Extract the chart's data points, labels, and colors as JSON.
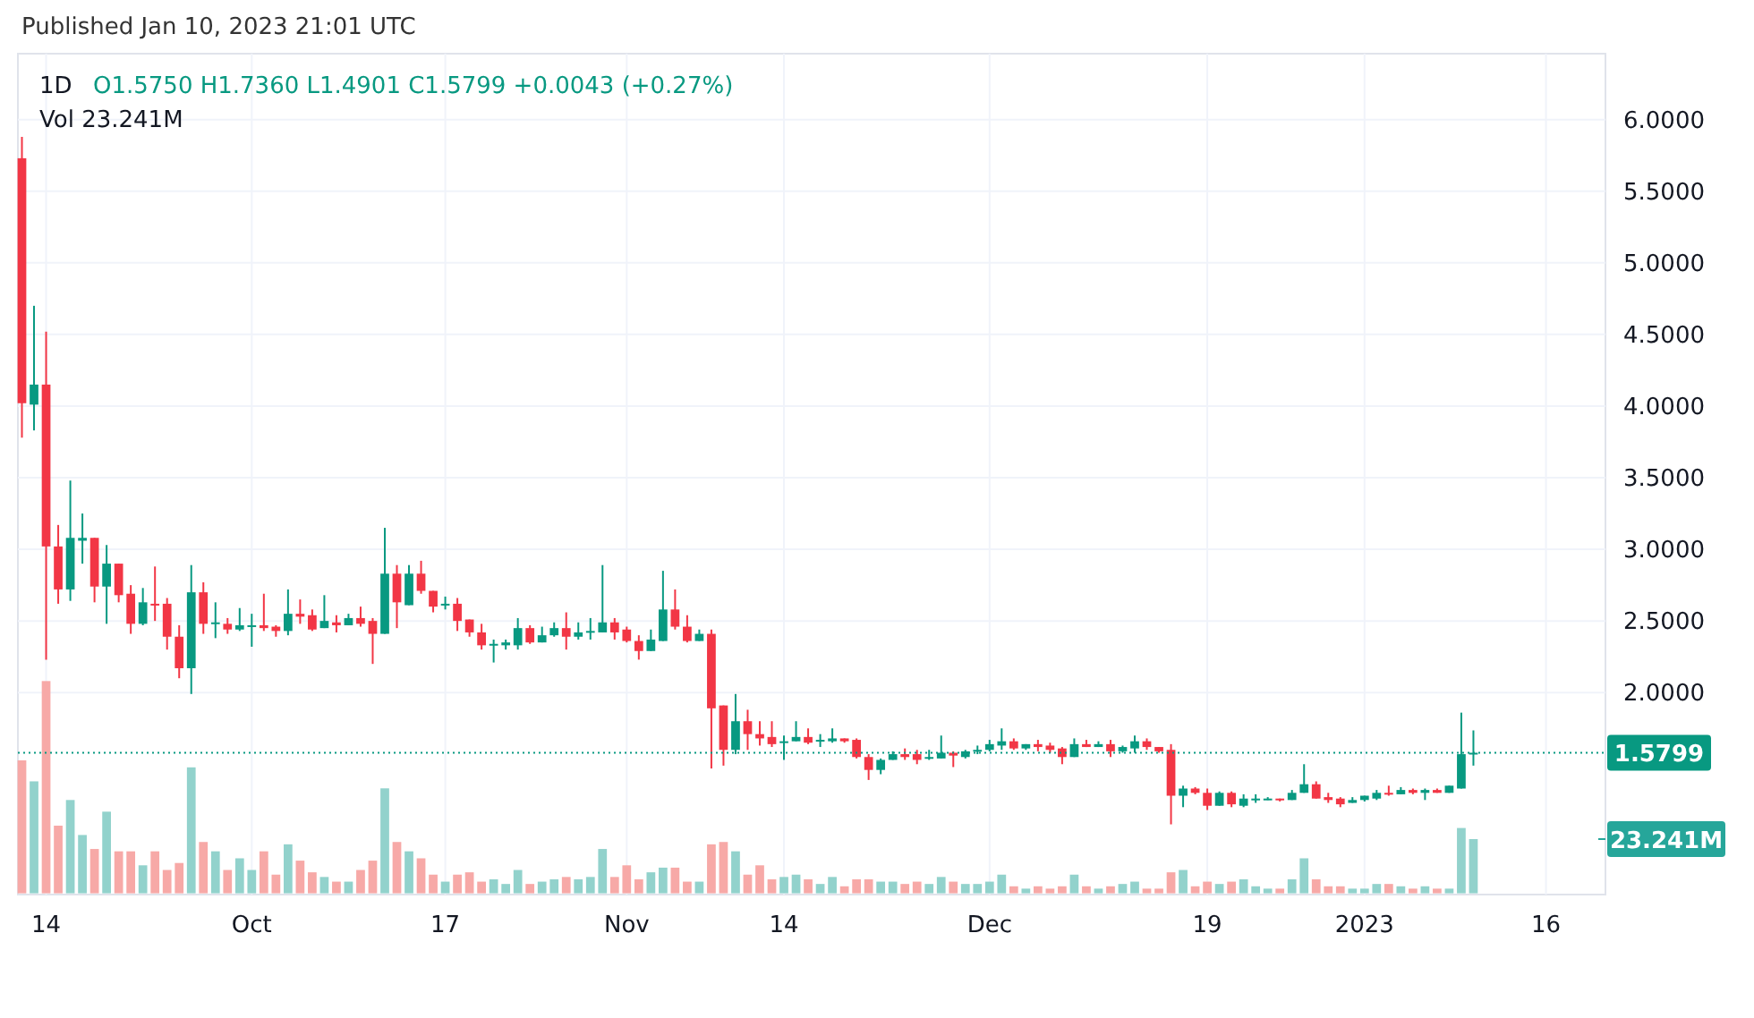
{
  "chart_data": {
    "type": "candlestick",
    "annotations": [
      "Published Jan 10, 2023 21:01 UTC",
      "1D",
      "O1.5750  H1.7360  L1.4901  C1.5799  +0.0043 (+0.27%)",
      "Vol  23.241M"
    ],
    "x": [
      "2022-09-12",
      "2022-09-13",
      "2022-09-14",
      "2022-09-15",
      "2022-09-16",
      "2022-09-17",
      "2022-09-18",
      "2022-09-19",
      "2022-09-20",
      "2022-09-21",
      "2022-09-22",
      "2022-09-23",
      "2022-09-24",
      "2022-09-25",
      "2022-09-26",
      "2022-09-27",
      "2022-09-28",
      "2022-09-29",
      "2022-09-30",
      "2022-10-01",
      "2022-10-02",
      "2022-10-03",
      "2022-10-04",
      "2022-10-05",
      "2022-10-06",
      "2022-10-07",
      "2022-10-08",
      "2022-10-09",
      "2022-10-10",
      "2022-10-11",
      "2022-10-12",
      "2022-10-13",
      "2022-10-14",
      "2022-10-15",
      "2022-10-16",
      "2022-10-17",
      "2022-10-18",
      "2022-10-19",
      "2022-10-20",
      "2022-10-21",
      "2022-10-22",
      "2022-10-23",
      "2022-10-24",
      "2022-10-25",
      "2022-10-26",
      "2022-10-27",
      "2022-10-28",
      "2022-10-29",
      "2022-10-30",
      "2022-10-31",
      "2022-11-01",
      "2022-11-02",
      "2022-11-03",
      "2022-11-04",
      "2022-11-05",
      "2022-11-06",
      "2022-11-07",
      "2022-11-08",
      "2022-11-09",
      "2022-11-10",
      "2022-11-11",
      "2022-11-12",
      "2022-11-13",
      "2022-11-14",
      "2022-11-15",
      "2022-11-16",
      "2022-11-17",
      "2022-11-18",
      "2022-11-19",
      "2022-11-20",
      "2022-11-21",
      "2022-11-22",
      "2022-11-23",
      "2022-11-24",
      "2022-11-25",
      "2022-11-26",
      "2022-11-27",
      "2022-11-28",
      "2022-11-29",
      "2022-11-30",
      "2022-12-01",
      "2022-12-02",
      "2022-12-03",
      "2022-12-04",
      "2022-12-05",
      "2022-12-06",
      "2022-12-07",
      "2022-12-08",
      "2022-12-09",
      "2022-12-10",
      "2022-12-11",
      "2022-12-12",
      "2022-12-13",
      "2022-12-14",
      "2022-12-15",
      "2022-12-16",
      "2022-12-17",
      "2022-12-18",
      "2022-12-19",
      "2022-12-20",
      "2022-12-21",
      "2022-12-22",
      "2022-12-23",
      "2022-12-24",
      "2022-12-25",
      "2022-12-26",
      "2022-12-27",
      "2022-12-28",
      "2022-12-29",
      "2022-12-30",
      "2022-12-31",
      "2023-01-01",
      "2023-01-02",
      "2023-01-03",
      "2023-01-04",
      "2023-01-05",
      "2023-01-06",
      "2023-01-07",
      "2023-01-08",
      "2023-01-09",
      "2023-01-10"
    ],
    "ohlc": [
      [
        5.73,
        5.88,
        3.78,
        4.02
      ],
      [
        4.01,
        4.7,
        3.83,
        4.15
      ],
      [
        4.15,
        4.52,
        2.23,
        3.02
      ],
      [
        3.02,
        3.17,
        2.62,
        2.72
      ],
      [
        2.72,
        3.48,
        2.64,
        3.08
      ],
      [
        3.06,
        3.25,
        2.9,
        3.08
      ],
      [
        3.08,
        3.08,
        2.63,
        2.74
      ],
      [
        2.74,
        3.03,
        2.48,
        2.9
      ],
      [
        2.9,
        2.9,
        2.63,
        2.68
      ],
      [
        2.69,
        2.75,
        2.41,
        2.48
      ],
      [
        2.48,
        2.73,
        2.47,
        2.63
      ],
      [
        2.62,
        2.88,
        2.5,
        2.61
      ],
      [
        2.62,
        2.66,
        2.3,
        2.39
      ],
      [
        2.39,
        2.47,
        2.1,
        2.17
      ],
      [
        2.17,
        2.89,
        1.99,
        2.7
      ],
      [
        2.7,
        2.77,
        2.41,
        2.48
      ],
      [
        2.48,
        2.63,
        2.38,
        2.49
      ],
      [
        2.48,
        2.52,
        2.41,
        2.44
      ],
      [
        2.44,
        2.59,
        2.43,
        2.47
      ],
      [
        2.46,
        2.55,
        2.32,
        2.47
      ],
      [
        2.47,
        2.69,
        2.43,
        2.45
      ],
      [
        2.46,
        2.47,
        2.39,
        2.43
      ],
      [
        2.43,
        2.72,
        2.4,
        2.55
      ],
      [
        2.55,
        2.65,
        2.48,
        2.53
      ],
      [
        2.54,
        2.58,
        2.43,
        2.44
      ],
      [
        2.45,
        2.68,
        2.45,
        2.5
      ],
      [
        2.49,
        2.54,
        2.42,
        2.47
      ],
      [
        2.47,
        2.55,
        2.47,
        2.52
      ],
      [
        2.52,
        2.6,
        2.46,
        2.48
      ],
      [
        2.5,
        2.52,
        2.2,
        2.41
      ],
      [
        2.41,
        3.15,
        2.41,
        2.83
      ],
      [
        2.83,
        2.89,
        2.45,
        2.63
      ],
      [
        2.61,
        2.89,
        2.61,
        2.83
      ],
      [
        2.83,
        2.92,
        2.69,
        2.71
      ],
      [
        2.71,
        2.71,
        2.56,
        2.6
      ],
      [
        2.61,
        2.67,
        2.58,
        2.62
      ],
      [
        2.62,
        2.66,
        2.43,
        2.5
      ],
      [
        2.51,
        2.51,
        2.39,
        2.42
      ],
      [
        2.42,
        2.48,
        2.3,
        2.33
      ],
      [
        2.33,
        2.37,
        2.21,
        2.34
      ],
      [
        2.33,
        2.37,
        2.3,
        2.35
      ],
      [
        2.33,
        2.52,
        2.3,
        2.45
      ],
      [
        2.45,
        2.47,
        2.34,
        2.35
      ],
      [
        2.35,
        2.46,
        2.35,
        2.4
      ],
      [
        2.4,
        2.49,
        2.39,
        2.45
      ],
      [
        2.45,
        2.56,
        2.3,
        2.39
      ],
      [
        2.39,
        2.49,
        2.37,
        2.42
      ],
      [
        2.42,
        2.52,
        2.37,
        2.43
      ],
      [
        2.42,
        2.89,
        2.42,
        2.49
      ],
      [
        2.49,
        2.52,
        2.37,
        2.42
      ],
      [
        2.44,
        2.46,
        2.35,
        2.36
      ],
      [
        2.36,
        2.4,
        2.23,
        2.29
      ],
      [
        2.29,
        2.44,
        2.29,
        2.37
      ],
      [
        2.36,
        2.85,
        2.36,
        2.58
      ],
      [
        2.58,
        2.72,
        2.44,
        2.46
      ],
      [
        2.46,
        2.54,
        2.35,
        2.36
      ],
      [
        2.36,
        2.44,
        2.36,
        2.41
      ],
      [
        2.41,
        2.44,
        1.47,
        1.89
      ],
      [
        1.91,
        1.91,
        1.49,
        1.6
      ],
      [
        1.6,
        1.99,
        1.57,
        1.8
      ],
      [
        1.8,
        1.88,
        1.6,
        1.71
      ],
      [
        1.71,
        1.8,
        1.63,
        1.68
      ],
      [
        1.69,
        1.8,
        1.62,
        1.64
      ],
      [
        1.65,
        1.7,
        1.53,
        1.66
      ],
      [
        1.66,
        1.8,
        1.66,
        1.69
      ],
      [
        1.69,
        1.75,
        1.64,
        1.65
      ],
      [
        1.66,
        1.71,
        1.62,
        1.67
      ],
      [
        1.66,
        1.75,
        1.65,
        1.68
      ],
      [
        1.68,
        1.68,
        1.65,
        1.66
      ],
      [
        1.67,
        1.68,
        1.54,
        1.55
      ],
      [
        1.55,
        1.57,
        1.39,
        1.46
      ],
      [
        1.46,
        1.54,
        1.43,
        1.53
      ],
      [
        1.53,
        1.59,
        1.53,
        1.57
      ],
      [
        1.57,
        1.61,
        1.53,
        1.55
      ],
      [
        1.57,
        1.6,
        1.5,
        1.53
      ],
      [
        1.54,
        1.6,
        1.53,
        1.55
      ],
      [
        1.54,
        1.7,
        1.54,
        1.58
      ],
      [
        1.58,
        1.59,
        1.48,
        1.56
      ],
      [
        1.55,
        1.6,
        1.54,
        1.59
      ],
      [
        1.59,
        1.63,
        1.57,
        1.6
      ],
      [
        1.6,
        1.67,
        1.59,
        1.64
      ],
      [
        1.63,
        1.75,
        1.6,
        1.66
      ],
      [
        1.66,
        1.68,
        1.6,
        1.61
      ],
      [
        1.61,
        1.64,
        1.6,
        1.64
      ],
      [
        1.64,
        1.67,
        1.59,
        1.62
      ],
      [
        1.63,
        1.65,
        1.58,
        1.6
      ],
      [
        1.61,
        1.62,
        1.5,
        1.55
      ],
      [
        1.55,
        1.68,
        1.55,
        1.64
      ],
      [
        1.64,
        1.67,
        1.62,
        1.62
      ],
      [
        1.62,
        1.66,
        1.62,
        1.64
      ],
      [
        1.64,
        1.67,
        1.55,
        1.59
      ],
      [
        1.59,
        1.63,
        1.58,
        1.62
      ],
      [
        1.61,
        1.7,
        1.58,
        1.66
      ],
      [
        1.66,
        1.68,
        1.6,
        1.62
      ],
      [
        1.62,
        1.62,
        1.58,
        1.59
      ],
      [
        1.6,
        1.64,
        1.08,
        1.28
      ],
      [
        1.28,
        1.35,
        1.2,
        1.33
      ],
      [
        1.33,
        1.34,
        1.29,
        1.3
      ],
      [
        1.3,
        1.33,
        1.18,
        1.21
      ],
      [
        1.21,
        1.31,
        1.21,
        1.3
      ],
      [
        1.3,
        1.31,
        1.2,
        1.22
      ],
      [
        1.21,
        1.29,
        1.2,
        1.26
      ],
      [
        1.25,
        1.29,
        1.23,
        1.26
      ],
      [
        1.25,
        1.27,
        1.25,
        1.26
      ],
      [
        1.26,
        1.26,
        1.24,
        1.25
      ],
      [
        1.25,
        1.32,
        1.25,
        1.3
      ],
      [
        1.3,
        1.5,
        1.3,
        1.36
      ],
      [
        1.36,
        1.38,
        1.26,
        1.26
      ],
      [
        1.27,
        1.3,
        1.23,
        1.25
      ],
      [
        1.26,
        1.27,
        1.2,
        1.22
      ],
      [
        1.23,
        1.27,
        1.23,
        1.25
      ],
      [
        1.25,
        1.28,
        1.24,
        1.28
      ],
      [
        1.26,
        1.32,
        1.25,
        1.3
      ],
      [
        1.3,
        1.35,
        1.28,
        1.29
      ],
      [
        1.29,
        1.34,
        1.29,
        1.32
      ],
      [
        1.32,
        1.33,
        1.29,
        1.3
      ],
      [
        1.3,
        1.33,
        1.25,
        1.32
      ],
      [
        1.32,
        1.33,
        1.3,
        1.3
      ],
      [
        1.3,
        1.35,
        1.3,
        1.35
      ],
      [
        1.33,
        1.86,
        1.33,
        1.57
      ],
      [
        1.575,
        1.736,
        1.4901,
        1.5799
      ]
    ],
    "colors": [
      "#f23645",
      "#089981",
      "#f23645",
      "#f23645",
      "#089981",
      "#089981",
      "#f23645",
      "#089981",
      "#f23645",
      "#f23645",
      "#089981",
      "#f23645",
      "#f23645",
      "#f23645",
      "#089981",
      "#f23645",
      "#089981",
      "#f23645",
      "#089981",
      "#089981",
      "#f23645",
      "#f23645",
      "#089981",
      "#f23645",
      "#f23645",
      "#089981",
      "#f23645",
      "#089981",
      "#f23645",
      "#f23645",
      "#089981",
      "#f23645",
      "#089981",
      "#f23645",
      "#f23645",
      "#089981",
      "#f23645",
      "#f23645",
      "#f23645",
      "#089981",
      "#089981",
      "#089981",
      "#f23645",
      "#089981",
      "#089981",
      "#f23645",
      "#089981",
      "#089981",
      "#089981",
      "#f23645",
      "#f23645",
      "#f23645",
      "#089981",
      "#089981",
      "#f23645",
      "#f23645",
      "#089981",
      "#f23645",
      "#f23645",
      "#089981",
      "#f23645",
      "#f23645",
      "#f23645",
      "#089981",
      "#089981",
      "#f23645",
      "#089981",
      "#089981",
      "#f23645",
      "#f23645",
      "#f23645",
      "#089981",
      "#089981",
      "#f23645",
      "#f23645",
      "#089981",
      "#089981",
      "#f23645",
      "#089981",
      "#089981",
      "#089981",
      "#089981",
      "#f23645",
      "#089981",
      "#f23645",
      "#f23645",
      "#f23645",
      "#089981",
      "#f23645",
      "#089981",
      "#f23645",
      "#089981",
      "#089981",
      "#f23645",
      "#f23645",
      "#f23645",
      "#089981",
      "#f23645",
      "#f23645",
      "#089981",
      "#f23645",
      "#089981",
      "#089981",
      "#089981",
      "#f23645",
      "#089981",
      "#089981",
      "#f23645",
      "#f23645",
      "#f23645",
      "#089981",
      "#089981",
      "#089981",
      "#f23645",
      "#089981",
      "#f23645",
      "#089981",
      "#f23645",
      "#089981",
      "#089981",
      "#089981"
    ],
    "series": [
      {
        "type": "bar",
        "axis": "y2",
        "colors": [
          "#f7a9a7",
          "#92d2cc",
          "#f7a9a7",
          "#f7a9a7",
          "#92d2cc",
          "#92d2cc",
          "#f7a9a7",
          "#92d2cc",
          "#f7a9a7",
          "#f7a9a7",
          "#92d2cc",
          "#f7a9a7",
          "#f7a9a7",
          "#f7a9a7",
          "#92d2cc",
          "#f7a9a7",
          "#92d2cc",
          "#f7a9a7",
          "#92d2cc",
          "#92d2cc",
          "#f7a9a7",
          "#f7a9a7",
          "#92d2cc",
          "#f7a9a7",
          "#f7a9a7",
          "#92d2cc",
          "#f7a9a7",
          "#92d2cc",
          "#f7a9a7",
          "#f7a9a7",
          "#92d2cc",
          "#f7a9a7",
          "#92d2cc",
          "#f7a9a7",
          "#f7a9a7",
          "#92d2cc",
          "#f7a9a7",
          "#f7a9a7",
          "#f7a9a7",
          "#92d2cc",
          "#92d2cc",
          "#92d2cc",
          "#f7a9a7",
          "#92d2cc",
          "#92d2cc",
          "#f7a9a7",
          "#92d2cc",
          "#92d2cc",
          "#92d2cc",
          "#f7a9a7",
          "#f7a9a7",
          "#f7a9a7",
          "#92d2cc",
          "#92d2cc",
          "#f7a9a7",
          "#f7a9a7",
          "#92d2cc",
          "#f7a9a7",
          "#f7a9a7",
          "#92d2cc",
          "#f7a9a7",
          "#f7a9a7",
          "#f7a9a7",
          "#92d2cc",
          "#92d2cc",
          "#f7a9a7",
          "#92d2cc",
          "#92d2cc",
          "#f7a9a7",
          "#f7a9a7",
          "#f7a9a7",
          "#92d2cc",
          "#92d2cc",
          "#f7a9a7",
          "#f7a9a7",
          "#92d2cc",
          "#92d2cc",
          "#f7a9a7",
          "#92d2cc",
          "#92d2cc",
          "#92d2cc",
          "#92d2cc",
          "#f7a9a7",
          "#92d2cc",
          "#f7a9a7",
          "#f7a9a7",
          "#f7a9a7",
          "#92d2cc",
          "#f7a9a7",
          "#92d2cc",
          "#f7a9a7",
          "#92d2cc",
          "#92d2cc",
          "#f7a9a7",
          "#f7a9a7",
          "#f7a9a7",
          "#92d2cc",
          "#f7a9a7",
          "#f7a9a7",
          "#92d2cc",
          "#f7a9a7",
          "#92d2cc",
          "#92d2cc",
          "#92d2cc",
          "#f7a9a7",
          "#92d2cc",
          "#92d2cc",
          "#f7a9a7",
          "#f7a9a7",
          "#f7a9a7",
          "#92d2cc",
          "#92d2cc",
          "#92d2cc",
          "#f7a9a7",
          "#92d2cc",
          "#f7a9a7",
          "#92d2cc",
          "#f7a9a7",
          "#92d2cc",
          "#92d2cc",
          "#92d2cc"
        ],
        "values": [
          57,
          48,
          91,
          29,
          40,
          25,
          19,
          35,
          18,
          18,
          12,
          18,
          10,
          13,
          54,
          22,
          18,
          10,
          15,
          10,
          18,
          8,
          21,
          14,
          9,
          7,
          5,
          5,
          10,
          14,
          45,
          22,
          18,
          15,
          8,
          5,
          8,
          9,
          5,
          6,
          4,
          10,
          4,
          5,
          6,
          7,
          6,
          7,
          19,
          7,
          12,
          6,
          9,
          11,
          11,
          5,
          5,
          21,
          22,
          18,
          8,
          12,
          6,
          7,
          8,
          6,
          4,
          7,
          3,
          6,
          6,
          5,
          5,
          4,
          5,
          4,
          7,
          5,
          4,
          4,
          5,
          8,
          3,
          2,
          3,
          2,
          3,
          8,
          3,
          2,
          3,
          4,
          5,
          2,
          2,
          9,
          10,
          3,
          5,
          4,
          5,
          6,
          3,
          2,
          2,
          6,
          15,
          6,
          3,
          3,
          2,
          2,
          4,
          4,
          3,
          2,
          3,
          2,
          2,
          28,
          23.241
        ]
      }
    ],
    "xlim": [
      "2022-09-11T16:00",
      "2023-01-20T22:00"
    ],
    "xticks": [
      {
        "value": "2022-09-14",
        "label": "14"
      },
      {
        "value": "2022-10-01",
        "label": "Oct"
      },
      {
        "value": "2022-10-17",
        "label": "17"
      },
      {
        "value": "2022-11-01",
        "label": "Nov"
      },
      {
        "value": "2022-11-14",
        "label": "14"
      },
      {
        "value": "2022-12-01",
        "label": "Dec"
      },
      {
        "value": "2022-12-19",
        "label": "19"
      },
      {
        "value": "2023-01-01",
        "label": "2023"
      },
      {
        "value": "2023-01-16",
        "label": "16"
      }
    ],
    "ylim": [
      0.59,
      6.46
    ],
    "yticks": [
      {
        "value": 2,
        "label": "2.0000"
      },
      {
        "value": 2.5,
        "label": "2.5000"
      },
      {
        "value": 3,
        "label": "3.0000"
      },
      {
        "value": 3.5,
        "label": "3.5000"
      },
      {
        "value": 4,
        "label": "4.0000"
      },
      {
        "value": 4.5,
        "label": "4.5000"
      },
      {
        "value": 5,
        "label": "5.0000"
      },
      {
        "value": 5.5,
        "label": "5.5000"
      },
      {
        "value": 6,
        "label": "6.0000"
      }
    ],
    "y2lim": [
      0,
      360
    ],
    "y2ticks": [
      {
        "value": 23.241,
        "label": "23.241M"
      }
    ],
    "ref_lines": [
      {
        "axis": "y",
        "value": 1.5799,
        "label": "1.5799",
        "color": "#089981",
        "line_style": "dotted"
      }
    ],
    "grid": true
  }
}
